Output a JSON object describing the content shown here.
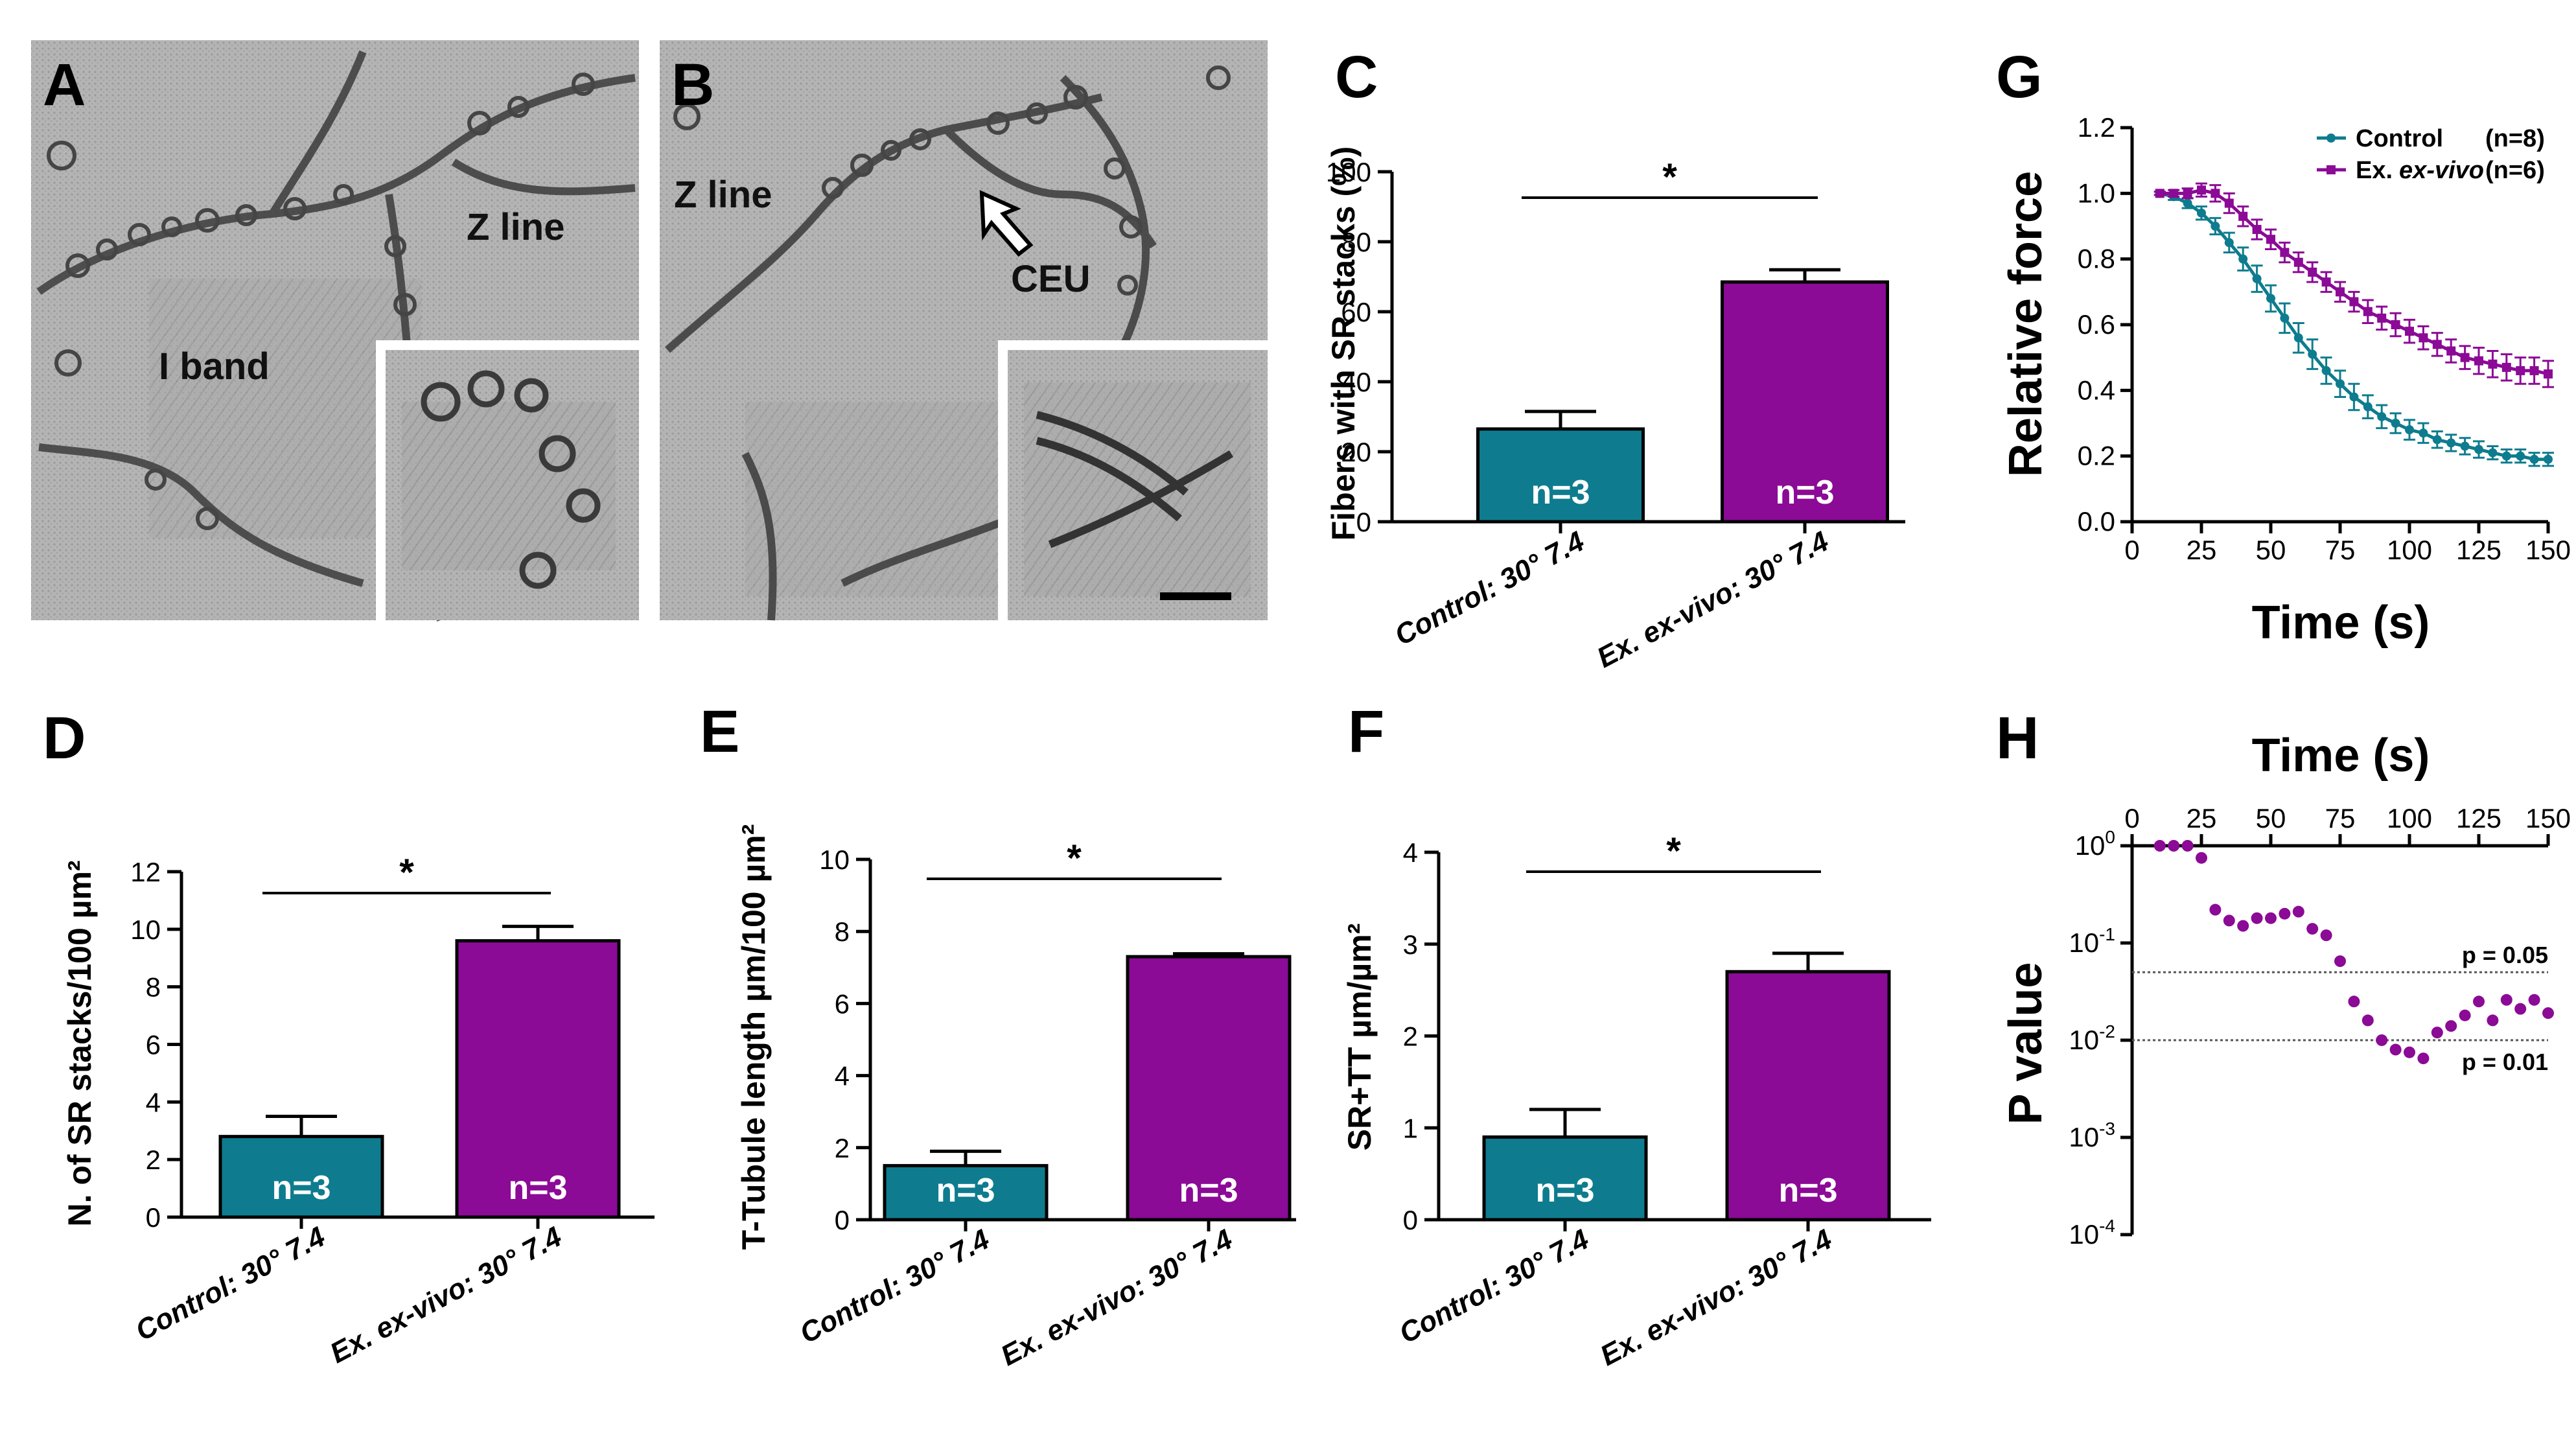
{
  "colors": {
    "teal": "#0e7c8e",
    "purple": "#8b0a96",
    "em_bg": "#a9a9a9",
    "em_membrane": "#3c3c3c",
    "threshold_line": "#555555"
  },
  "panel_labels": {
    "A": "A",
    "B": "B",
    "C": "C",
    "D": "D",
    "E": "E",
    "F": "F",
    "G": "G",
    "H": "H"
  },
  "micrographs": {
    "A": {
      "annotations": [
        "Z line",
        "I band"
      ]
    },
    "B": {
      "annotations": [
        "Z line",
        "CEU"
      ]
    }
  },
  "chart_data": [
    {
      "id": "C",
      "type": "bar",
      "categories": [
        "Control: 30° 7.4",
        "Ex. ex-vivo: 30° 7.4"
      ],
      "values": [
        26.5,
        68.5
      ],
      "errors": [
        5,
        3.5
      ],
      "n_labels": [
        "n=3",
        "n=3"
      ],
      "ylabel": "Fibers with SR stacks (%)",
      "ylim": [
        0,
        100
      ],
      "yticks": [
        0,
        20,
        40,
        60,
        80,
        100
      ],
      "ytick_labels": [
        "0",
        "20",
        "40",
        "60",
        "80",
        "100"
      ],
      "significance": "*"
    },
    {
      "id": "D",
      "type": "bar",
      "categories": [
        "Control: 30° 7.4",
        "Ex. ex-vivo: 30° 7.4"
      ],
      "values": [
        2.8,
        9.6
      ],
      "errors": [
        0.7,
        0.5
      ],
      "n_labels": [
        "n=3",
        "n=3"
      ],
      "ylabel": "N. of SR stacks/100 µm²",
      "ylim": [
        0,
        12
      ],
      "yticks": [
        0,
        2,
        4,
        6,
        8,
        10,
        12
      ],
      "ytick_labels": [
        "0",
        "2",
        "4",
        "6",
        "8",
        "10",
        "12"
      ],
      "significance": "*"
    },
    {
      "id": "E",
      "type": "bar",
      "categories": [
        "Control: 30° 7.4",
        "Ex. ex-vivo: 30° 7.4"
      ],
      "values": [
        1.5,
        7.3
      ],
      "errors": [
        0.4,
        0.08
      ],
      "n_labels": [
        "n=3",
        "n=3"
      ],
      "ylabel": "T-Tubule length µm/100 µm²",
      "ylim": [
        0,
        10
      ],
      "yticks": [
        0,
        2,
        4,
        6,
        8,
        10
      ],
      "ytick_labels": [
        "0",
        "2",
        "4",
        "6",
        "8",
        "10"
      ],
      "significance": "*"
    },
    {
      "id": "F",
      "type": "bar",
      "categories": [
        "Control: 30° 7.4",
        "Ex. ex-vivo: 30° 7.4"
      ],
      "values": [
        0.9,
        2.7
      ],
      "errors": [
        0.3,
        0.2
      ],
      "n_labels": [
        "n=3",
        "n=3"
      ],
      "ylabel": "SR+TT µm/µm²",
      "ylim": [
        0,
        4
      ],
      "yticks": [
        0,
        1,
        2,
        3,
        4
      ],
      "ytick_labels": [
        "0",
        "1",
        "2",
        "3",
        "4"
      ],
      "significance": "*"
    },
    {
      "id": "G",
      "type": "line",
      "title": "",
      "xlabel": "Time (s)",
      "ylabel": "Relative force",
      "xlim": [
        0,
        150
      ],
      "ylim": [
        0,
        1.2
      ],
      "xticks": [
        0,
        25,
        50,
        75,
        100,
        125,
        150
      ],
      "xtick_labels": [
        "0",
        "25",
        "50",
        "75",
        "100",
        "125",
        "150"
      ],
      "yticks": [
        0,
        0.2,
        0.4,
        0.6,
        0.8,
        1.0,
        1.2
      ],
      "ytick_labels": [
        "0.0",
        "0.2",
        "0.4",
        "0.6",
        "0.8",
        "1.0",
        "1.2"
      ],
      "x": [
        10,
        15,
        20,
        25,
        30,
        35,
        40,
        45,
        50,
        55,
        60,
        65,
        70,
        75,
        80,
        85,
        90,
        95,
        100,
        105,
        110,
        115,
        120,
        125,
        130,
        135,
        140,
        145,
        150
      ],
      "series": [
        {
          "name": "Control",
          "legend_suffix": "(n=8)",
          "values": [
            1.0,
            0.99,
            0.97,
            0.94,
            0.9,
            0.85,
            0.8,
            0.74,
            0.68,
            0.62,
            0.56,
            0.51,
            0.46,
            0.42,
            0.38,
            0.35,
            0.32,
            0.3,
            0.28,
            0.27,
            0.25,
            0.24,
            0.23,
            0.22,
            0.21,
            0.2,
            0.2,
            0.19,
            0.19
          ],
          "errors": [
            0.005,
            0.01,
            0.015,
            0.02,
            0.025,
            0.03,
            0.035,
            0.04,
            0.04,
            0.045,
            0.045,
            0.045,
            0.04,
            0.04,
            0.04,
            0.035,
            0.035,
            0.03,
            0.03,
            0.03,
            0.025,
            0.025,
            0.025,
            0.025,
            0.02,
            0.02,
            0.02,
            0.02,
            0.02
          ]
        },
        {
          "name": "Ex. ex-vivo",
          "legend_prefix": "Ex.",
          "legend_italic": "ex-vivo",
          "legend_suffix": "(n=6)",
          "values": [
            1.0,
            1.0,
            1.0,
            1.01,
            1.0,
            0.97,
            0.93,
            0.89,
            0.86,
            0.82,
            0.79,
            0.76,
            0.73,
            0.7,
            0.67,
            0.64,
            0.62,
            0.6,
            0.58,
            0.56,
            0.54,
            0.52,
            0.5,
            0.49,
            0.48,
            0.47,
            0.46,
            0.46,
            0.45
          ],
          "errors": [
            0.005,
            0.01,
            0.015,
            0.02,
            0.025,
            0.03,
            0.03,
            0.03,
            0.03,
            0.03,
            0.03,
            0.03,
            0.03,
            0.03,
            0.03,
            0.035,
            0.035,
            0.035,
            0.035,
            0.035,
            0.035,
            0.035,
            0.035,
            0.04,
            0.04,
            0.04,
            0.04,
            0.04,
            0.04
          ]
        }
      ]
    },
    {
      "id": "H",
      "type": "scatter",
      "xlabel": "Time (s)",
      "ylabel": "P value",
      "yscale": "log",
      "ylim_exponent": [
        -4,
        0
      ],
      "xlim": [
        0,
        150
      ],
      "xticks": [
        0,
        25,
        50,
        75,
        100,
        125,
        150
      ],
      "xtick_labels": [
        "0",
        "25",
        "50",
        "75",
        "100",
        "125",
        "150"
      ],
      "ytick_base": "10",
      "ytick_exponents": [
        "0",
        "-1",
        "-2",
        "-3",
        "-4"
      ],
      "thresholds": [
        {
          "value": 0.05,
          "label": "p = 0.05"
        },
        {
          "value": 0.01,
          "label": "p = 0.01"
        }
      ],
      "x": [
        10,
        15,
        20,
        25,
        30,
        35,
        40,
        45,
        50,
        55,
        60,
        65,
        70,
        75,
        80,
        85,
        90,
        95,
        100,
        105,
        110,
        115,
        120,
        125,
        130,
        135,
        140,
        145,
        150
      ],
      "p_values": [
        1.0,
        1.0,
        1.0,
        0.75,
        0.22,
        0.17,
        0.15,
        0.18,
        0.18,
        0.2,
        0.21,
        0.14,
        0.12,
        0.065,
        0.025,
        0.016,
        0.01,
        0.008,
        0.0075,
        0.0065,
        0.012,
        0.014,
        0.018,
        0.025,
        0.016,
        0.026,
        0.021,
        0.026,
        0.019
      ]
    }
  ]
}
